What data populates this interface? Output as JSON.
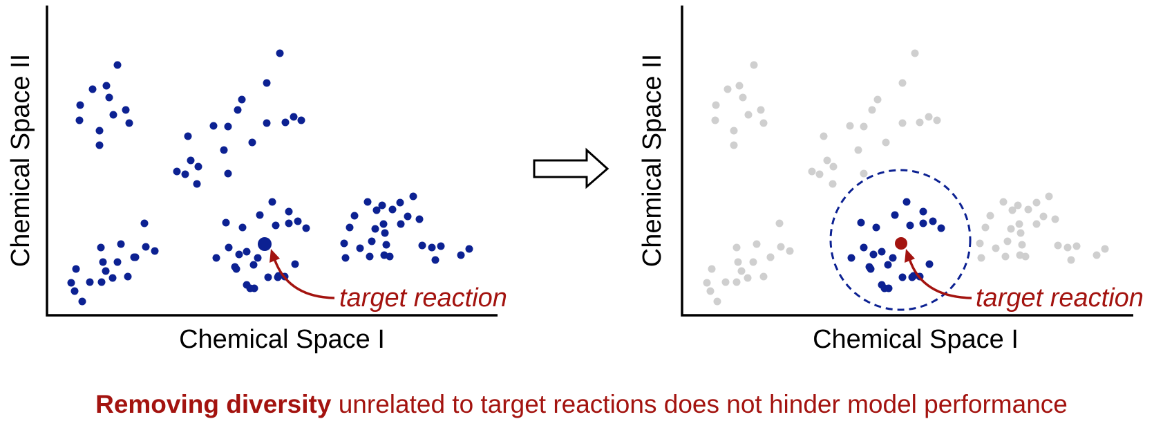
{
  "colors": {
    "point": "#0c2192",
    "faded_point": "#cfcfcf",
    "target": "#a3130f",
    "axis": "#000000"
  },
  "left_panel": {
    "y_axis_label": "Chemical Space II",
    "x_axis_label": "Chemical Space I",
    "annotation": "target reaction"
  },
  "right_panel": {
    "y_axis_label": "Chemical Space II",
    "x_axis_label": "Chemical Space I",
    "annotation": "target reaction"
  },
  "transition": {
    "icon": "right-arrow-icon"
  },
  "caption": {
    "bold": "Removing diversity",
    "rest": " unrelated to target reactions does not hinder model performance"
  }
}
